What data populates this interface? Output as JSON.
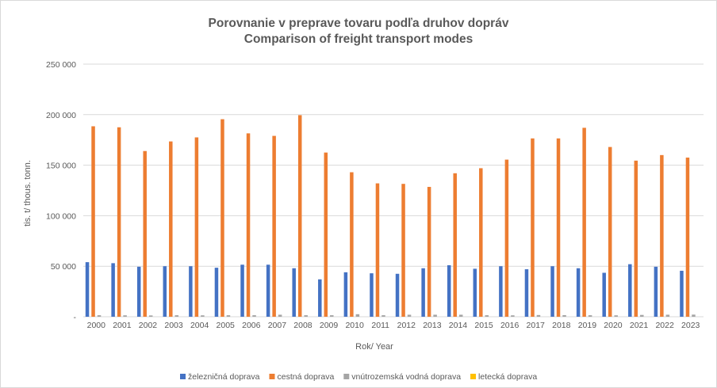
{
  "chart_data": {
    "type": "bar",
    "title": "Porovnanie v preprave tovaru podľa druhov dopráv",
    "subtitle": "Comparison of freight transport modes",
    "xlabel": "Rok/ Year",
    "ylabel": "tis. t/ thous. tonn.",
    "ylim": [
      0,
      250000
    ],
    "ytick_values": [
      0,
      50000,
      100000,
      150000,
      200000,
      250000
    ],
    "ytick_labels": [
      "-",
      "50 000",
      "100 000",
      "150 000",
      "200 000",
      "250 000"
    ],
    "grid": true,
    "legend_position": "bottom",
    "categories": [
      "2000",
      "2001",
      "2002",
      "2003",
      "2004",
      "2005",
      "2006",
      "2007",
      "2008",
      "2009",
      "2010",
      "2011",
      "2012",
      "2013",
      "2014",
      "2015",
      "2016",
      "2017",
      "2018",
      "2019",
      "2020",
      "2021",
      "2022",
      "2023"
    ],
    "series": [
      {
        "name": "železničná doprava",
        "color": "#4472C4",
        "values": [
          54000,
          53000,
          49500,
          50000,
          50000,
          48500,
          51500,
          51500,
          48000,
          37000,
          44000,
          43000,
          42500,
          48000,
          51000,
          47500,
          50000,
          47000,
          50000,
          48000,
          43500,
          52000,
          49500,
          45500
        ]
      },
      {
        "name": "cestná doprava",
        "color": "#ED7D31",
        "values": [
          188500,
          187500,
          164000,
          173500,
          177500,
          195500,
          181500,
          179000,
          199500,
          162500,
          143000,
          132000,
          131500,
          128500,
          142000,
          147000,
          155500,
          176500,
          176500,
          187000,
          168000,
          154500,
          160000,
          157500
        ]
      },
      {
        "name": "vnútrozemská vodná doprava",
        "color": "#A5A5A5",
        "values": [
          1500,
          1400,
          1300,
          1500,
          1400,
          1500,
          1500,
          2000,
          1500,
          1500,
          2500,
          1500,
          2000,
          2000,
          2000,
          1500,
          1400,
          1700,
          1600,
          1500,
          1400,
          1800,
          2000,
          2100
        ]
      },
      {
        "name": "letecká doprava",
        "color": "#FFC000",
        "values": [
          0,
          0,
          0,
          0,
          0,
          0,
          0,
          0,
          0,
          0,
          0,
          0,
          0,
          0,
          0,
          0,
          0,
          0,
          0,
          0,
          0,
          0,
          0,
          0
        ]
      }
    ]
  }
}
